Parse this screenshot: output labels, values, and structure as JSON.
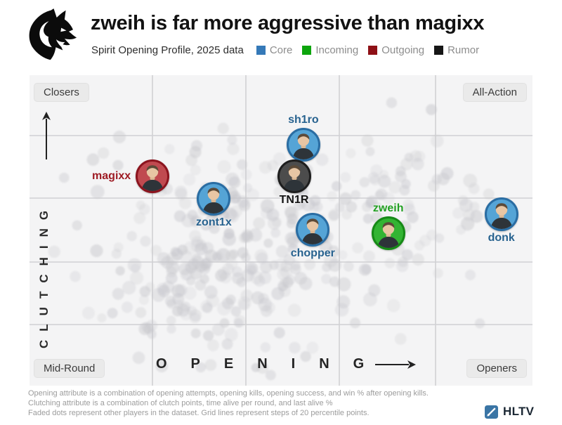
{
  "header": {
    "title": "zweih is far more aggressive than magixx",
    "subtitle": "Spirit Opening Profile, 2025 data"
  },
  "legend": {
    "items": [
      {
        "label": "Core",
        "color": "#3579b8"
      },
      {
        "label": "Incoming",
        "color": "#0da50d"
      },
      {
        "label": "Outgoing",
        "color": "#8e1016"
      },
      {
        "label": "Rumor",
        "color": "#161616"
      }
    ]
  },
  "chart_data": {
    "type": "scatter",
    "x_axis": {
      "label": "OPENING",
      "range": [
        0,
        100
      ],
      "grid_step_percentile": 20,
      "low_end_label": "Mid-Round",
      "high_end_label": "Openers"
    },
    "y_axis": {
      "label": "CLUTCHING",
      "range": [
        0,
        100
      ],
      "grid_step_percentile": 20,
      "low_end_label": "Mid-Round",
      "high_end_label": "Closers"
    },
    "corner_labels": {
      "top_left": "Closers",
      "top_right": "All-Action",
      "bottom_left": "Mid-Round",
      "bottom_right": "Openers"
    },
    "players": [
      {
        "name": "magixx",
        "status": "outgoing",
        "opening_percentile": 20,
        "clutching_percentile": 67,
        "label_position": "left"
      },
      {
        "name": "zont1x",
        "status": "core",
        "opening_percentile": 33,
        "clutching_percentile": 60,
        "label_position": "below"
      },
      {
        "name": "sh1ro",
        "status": "core",
        "opening_percentile": 52,
        "clutching_percentile": 77,
        "label_position": "above"
      },
      {
        "name": "TN1R",
        "status": "rumor",
        "opening_percentile": 50,
        "clutching_percentile": 67,
        "label_position": "below"
      },
      {
        "name": "chopper",
        "status": "core",
        "opening_percentile": 54,
        "clutching_percentile": 50,
        "label_position": "below"
      },
      {
        "name": "zweih",
        "status": "incoming",
        "opening_percentile": 70,
        "clutching_percentile": 49,
        "label_position": "above"
      },
      {
        "name": "donk",
        "status": "core",
        "opening_percentile": 94,
        "clutching_percentile": 55,
        "label_position": "below"
      }
    ],
    "status_colors": {
      "core": {
        "ring": "#2a6da3",
        "fill": "#55a4d6",
        "label": "#27628f"
      },
      "incoming": {
        "ring": "#168a16",
        "fill": "#33b433",
        "label": "#22a022"
      },
      "outgoing": {
        "ring": "#8c141e",
        "fill": "#c04a50",
        "label": "#9e1b24"
      },
      "rumor": {
        "ring": "#1e1e1e",
        "fill": "#4c4c4c",
        "label": "#131313"
      }
    }
  },
  "footer": {
    "lines": [
      "Opening attribute is a combination of opening attempts, opening kills,  opening success, and win % after opening kills.",
      "Clutching attribute is a combination of clutch points, time alive per round, and last alive %",
      "Faded dots represent other players in the dataset. Grid lines represent steps of 20 percentile points."
    ],
    "brand": "HLTV"
  }
}
